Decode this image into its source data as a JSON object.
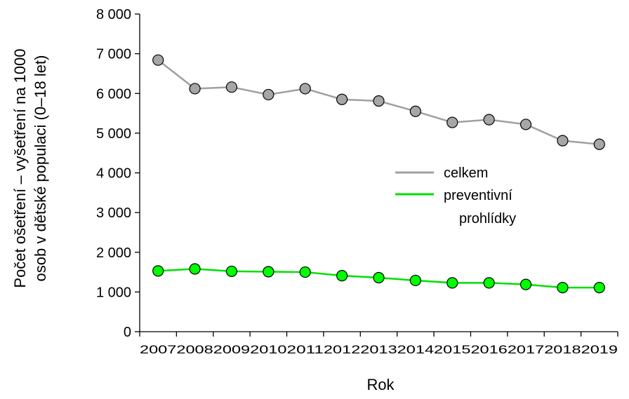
{
  "chart_data": {
    "type": "line",
    "xlabel": "Rok",
    "ylabel_lines": [
      "Počet ošetření – vyšetření na 1000",
      "osob v dětské populaci (0–18 let)"
    ],
    "categories": [
      "2007",
      "2008",
      "2009",
      "2010",
      "2011",
      "2012",
      "2013",
      "2014",
      "2015",
      "2016",
      "2017",
      "2018",
      "2019"
    ],
    "ylim": [
      0,
      8000
    ],
    "yticks": [
      0,
      1000,
      2000,
      3000,
      4000,
      5000,
      6000,
      7000,
      8000
    ],
    "ytick_labels": [
      "0",
      "1 000",
      "2 000",
      "3 000",
      "4 000",
      "5 000",
      "6 000",
      "7 000",
      "8 000"
    ],
    "grid": false,
    "legend_position": "right",
    "series": [
      {
        "name": "celkem",
        "line_color": "#a0a0a0",
        "marker_color": "#a6a6a6",
        "values": [
          6840,
          6120,
          6160,
          5970,
          6120,
          5850,
          5810,
          5550,
          5270,
          5340,
          5220,
          4810,
          4720
        ]
      },
      {
        "name_lines": [
          "preventivní",
          "prohlídky"
        ],
        "line_color": "#00e000",
        "marker_color": "#00ff00",
        "values": [
          1530,
          1580,
          1520,
          1510,
          1500,
          1410,
          1360,
          1290,
          1230,
          1230,
          1190,
          1110,
          1110
        ]
      }
    ]
  }
}
